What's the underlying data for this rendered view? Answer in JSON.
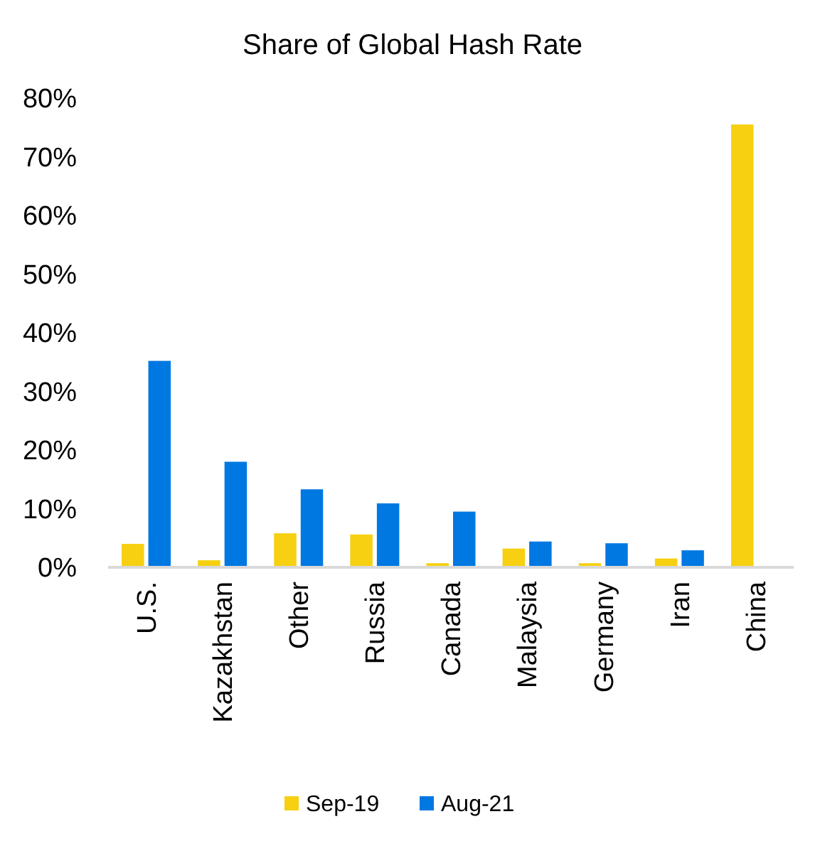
{
  "chart_data": {
    "type": "bar",
    "title": "Share of Global Hash Rate",
    "categories": [
      "U.S.",
      "Kazakhstan",
      "Other",
      "Russia",
      "Canada",
      "Malaysia",
      "Germany",
      "Iran",
      "China"
    ],
    "series": [
      {
        "name": "Sep-19",
        "color": "#f6d011",
        "values": [
          4.0,
          1.2,
          5.8,
          5.6,
          0.7,
          3.2,
          0.7,
          1.5,
          75.5
        ]
      },
      {
        "name": "Aug-21",
        "color": "#0078e1",
        "values": [
          35.2,
          18.0,
          13.3,
          10.9,
          9.5,
          4.4,
          4.1,
          2.9,
          null
        ]
      }
    ],
    "ylim": [
      0,
      80
    ],
    "yticks": [
      {
        "value": 0,
        "label": "0%"
      },
      {
        "value": 10,
        "label": "10%"
      },
      {
        "value": 20,
        "label": "20%"
      },
      {
        "value": 30,
        "label": "30%"
      },
      {
        "value": 40,
        "label": "40%"
      },
      {
        "value": 50,
        "label": "50%"
      },
      {
        "value": 60,
        "label": "60%"
      },
      {
        "value": 70,
        "label": "70%"
      },
      {
        "value": 80,
        "label": "80%"
      }
    ],
    "grid": false,
    "legend": "bottom"
  }
}
